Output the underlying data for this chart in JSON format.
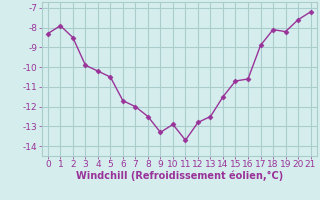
{
  "x": [
    0,
    1,
    2,
    3,
    4,
    5,
    6,
    7,
    8,
    9,
    10,
    11,
    12,
    13,
    14,
    15,
    16,
    17,
    18,
    19,
    20,
    21
  ],
  "y": [
    -8.3,
    -7.9,
    -8.5,
    -9.9,
    -10.2,
    -10.5,
    -11.7,
    -12.0,
    -12.5,
    -13.3,
    -12.9,
    -13.7,
    -12.8,
    -12.5,
    -11.5,
    -10.7,
    -10.6,
    -8.9,
    -8.1,
    -8.2,
    -7.6,
    -7.2
  ],
  "line_color": "#993399",
  "marker": "D",
  "marker_size": 2.5,
  "bg_color": "#d5eeed",
  "grid_color": "#aacccc",
  "xlabel": "Windchill (Refroidissement éolien,°C)",
  "xlabel_color": "#993399",
  "xlabel_fontsize": 7,
  "tick_color": "#993399",
  "tick_fontsize": 6.5,
  "ylim": [
    -14.5,
    -6.7
  ],
  "xlim": [
    -0.5,
    21.5
  ],
  "yticks": [
    -7,
    -8,
    -9,
    -10,
    -11,
    -12,
    -13,
    -14
  ],
  "xticks": [
    0,
    1,
    2,
    3,
    4,
    5,
    6,
    7,
    8,
    9,
    10,
    11,
    12,
    13,
    14,
    15,
    16,
    17,
    18,
    19,
    20,
    21
  ]
}
